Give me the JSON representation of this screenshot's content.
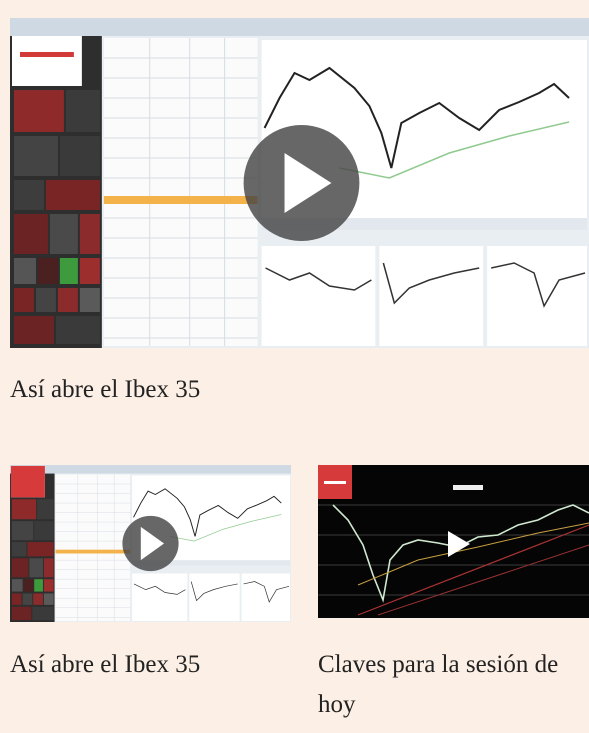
{
  "videos": [
    {
      "title": "Así abre el Ibex 35"
    },
    {
      "title": "Así abre el Ibex 35"
    },
    {
      "title": "Claves para la sesión de hoy"
    }
  ]
}
